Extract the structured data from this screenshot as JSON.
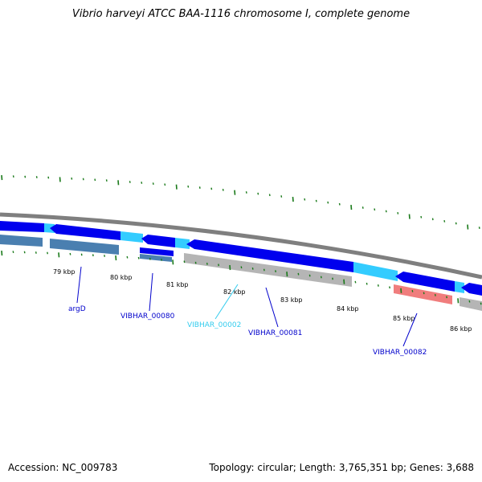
{
  "title": "Vibrio harveyi ATCC BAA-1116 chromosome I, complete genome",
  "footer": {
    "accession": "Accession: NC_009783",
    "stats": "Topology: circular; Length: 3,765,351 bp; Genes: 3,688"
  },
  "colors": {
    "backbone": "#7f7f7f",
    "cds_forward": "#0000ee",
    "intergenic": "#33ccff",
    "gene_steelblue": "#4a7fb0",
    "gene_gray": "#b5b5b5",
    "gene_red": "#f07d7d",
    "tick": "#1a7a1a",
    "label_blue": "#0000cc",
    "label_cyan": "#33ccee"
  },
  "kbp_labels": [
    "79 kbp",
    "80 kbp",
    "81 kbp",
    "82 kbp",
    "83 kbp",
    "84 kbp",
    "85 kbp",
    "86 kbp"
  ],
  "gene_labels": [
    {
      "name": "argD",
      "color": "blue"
    },
    {
      "name": "VIBHAR_00080",
      "color": "blue"
    },
    {
      "name": "VIBHAR_00002",
      "color": "cyan"
    },
    {
      "name": "VIBHAR_00081",
      "color": "blue"
    },
    {
      "name": "VIBHAR_00082",
      "color": "blue"
    }
  ]
}
